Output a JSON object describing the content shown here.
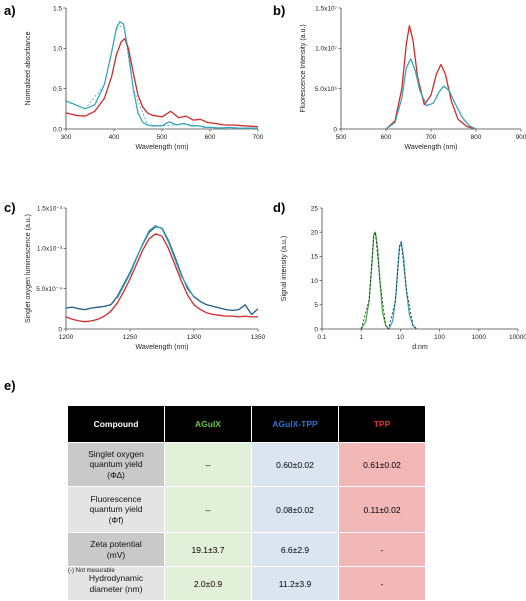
{
  "panels": {
    "a": "a)",
    "b": "b)",
    "c": "c)",
    "d": "d)",
    "e": "e)"
  },
  "chart_data": [
    {
      "id": "a",
      "type": "line",
      "xlabel": "Wavelength (nm)",
      "ylabel": "Normalized absorbance",
      "xlim": [
        300,
        700
      ],
      "ylim": [
        0,
        1.5
      ],
      "xticks": [
        300,
        400,
        500,
        600,
        700
      ],
      "yticks": [
        0,
        0.5,
        1,
        1.5
      ],
      "ytick_labels": [
        "0.0",
        "0.5",
        "1.0",
        "1.5"
      ],
      "series": [
        {
          "color": "#3aa6b9",
          "x": [
            300,
            320,
            340,
            360,
            380,
            395,
            405,
            412,
            420,
            430,
            440,
            450,
            460,
            470,
            480,
            500,
            515,
            530,
            545,
            560,
            575,
            590,
            605,
            620,
            640,
            660,
            680,
            700
          ],
          "y": [
            0.35,
            0.3,
            0.25,
            0.3,
            0.55,
            0.95,
            1.25,
            1.33,
            1.3,
            0.95,
            0.5,
            0.2,
            0.08,
            0.05,
            0.04,
            0.04,
            0.09,
            0.05,
            0.07,
            0.04,
            0.04,
            0.02,
            0.02,
            0.01,
            0.02,
            0.01,
            0.01,
            0.01
          ]
        },
        {
          "color": "#d12a2a",
          "x": [
            300,
            320,
            340,
            360,
            380,
            395,
            405,
            415,
            422,
            430,
            440,
            450,
            460,
            470,
            480,
            500,
            518,
            535,
            550,
            565,
            580,
            595,
            610,
            630,
            650,
            670,
            700
          ],
          "y": [
            0.2,
            0.17,
            0.16,
            0.22,
            0.38,
            0.65,
            0.92,
            1.08,
            1.12,
            1.0,
            0.7,
            0.42,
            0.27,
            0.2,
            0.17,
            0.15,
            0.22,
            0.14,
            0.16,
            0.11,
            0.12,
            0.08,
            0.07,
            0.05,
            0.05,
            0.04,
            0.03
          ]
        },
        {
          "color": "#3aa6b9",
          "dashed": true,
          "x": [
            300,
            340,
            380,
            405,
            420,
            440,
            470,
            500,
            550,
            600,
            700
          ],
          "y": [
            0.34,
            0.25,
            0.55,
            1.24,
            1.29,
            0.5,
            0.05,
            0.04,
            0.06,
            0.02,
            0.01
          ]
        }
      ]
    },
    {
      "id": "b",
      "type": "line",
      "xlabel": "Wavelength (nm)",
      "ylabel": "Fluorescence Intensity (a.u.)",
      "xlim": [
        500,
        900
      ],
      "ylim": [
        0,
        15000000
      ],
      "xticks": [
        500,
        600,
        700,
        800,
        900
      ],
      "yticks": [
        0,
        5000000,
        10000000,
        15000000
      ],
      "ytick_labels": [
        "0",
        "5.0x10⁶",
        "1.0x10⁷",
        "1.5x10⁷"
      ],
      "series": [
        {
          "color": "#d12a2a",
          "x": [
            600,
            620,
            635,
            645,
            652,
            660,
            670,
            685,
            700,
            712,
            722,
            732,
            745,
            760,
            780,
            800
          ],
          "y": [
            0,
            1000000,
            5000000,
            10500000,
            12800000,
            11000000,
            6500000,
            3000000,
            4200000,
            6800000,
            8000000,
            6800000,
            3500000,
            1200000,
            300000,
            0
          ]
        },
        {
          "color": "#3aa6b9",
          "x": [
            600,
            620,
            635,
            645,
            655,
            665,
            675,
            690,
            705,
            718,
            728,
            740,
            755,
            770,
            785,
            800
          ],
          "y": [
            0,
            800000,
            3800000,
            7600000,
            8700000,
            7200000,
            4800000,
            2900000,
            3200000,
            4600000,
            5300000,
            4800000,
            3000000,
            1400000,
            400000,
            0
          ]
        }
      ]
    },
    {
      "id": "c",
      "type": "line",
      "xlabel": "Wavelength (nm)",
      "ylabel": "Singlet oxygen luminescence (a.u.)",
      "xlim": [
        1200,
        1350
      ],
      "ylim": [
        0,
        0.0015
      ],
      "xticks": [
        1200,
        1250,
        1300,
        1350
      ],
      "yticks": [
        0,
        0.0005,
        0.001,
        0.0015
      ],
      "ytick_labels": [
        "0",
        "5.0x10⁻⁴",
        "1.0x10⁻³",
        "1.5x10⁻³"
      ],
      "series": [
        {
          "color": "#1f5b86",
          "x": [
            1200,
            1205,
            1210,
            1215,
            1220,
            1225,
            1230,
            1235,
            1240,
            1245,
            1250,
            1255,
            1260,
            1265,
            1270,
            1275,
            1280,
            1285,
            1290,
            1295,
            1300,
            1305,
            1310,
            1315,
            1320,
            1325,
            1330,
            1335,
            1340,
            1345,
            1350
          ],
          "y": [
            0.00026,
            0.00027,
            0.00025,
            0.00024,
            0.00026,
            0.00027,
            0.00028,
            0.0003,
            0.0004,
            0.00055,
            0.0007,
            0.00088,
            0.00105,
            0.0012,
            0.00127,
            0.00125,
            0.0011,
            0.0009,
            0.00068,
            0.0005,
            0.0004,
            0.00034,
            0.0003,
            0.00028,
            0.00026,
            0.00024,
            0.00023,
            0.00024,
            0.0003,
            0.00018,
            0.00025
          ]
        },
        {
          "color": "#d12a2a",
          "x": [
            1200,
            1205,
            1210,
            1215,
            1220,
            1225,
            1230,
            1235,
            1240,
            1245,
            1250,
            1255,
            1260,
            1265,
            1270,
            1275,
            1280,
            1285,
            1290,
            1295,
            1300,
            1305,
            1310,
            1315,
            1320,
            1325,
            1330,
            1335,
            1340,
            1345,
            1350
          ],
          "y": [
            0.00015,
            0.00012,
            0.0001,
            9e-05,
            0.0001,
            0.00012,
            0.00016,
            0.00022,
            0.00032,
            0.00046,
            0.00062,
            0.0008,
            0.00098,
            0.00112,
            0.00118,
            0.00115,
            0.001,
            0.0008,
            0.0006,
            0.00042,
            0.0003,
            0.00024,
            0.0002,
            0.00018,
            0.00017,
            0.00016,
            0.00016,
            0.00015,
            0.00016,
            0.00015,
            0.00015
          ]
        },
        {
          "color": "#3aa6b9",
          "x": [
            1240,
            1250,
            1260,
            1265,
            1270,
            1275,
            1280,
            1290,
            1300
          ],
          "y": [
            0.00038,
            0.00068,
            0.00106,
            0.00122,
            0.00128,
            0.00124,
            0.00108,
            0.00066,
            0.00039
          ]
        }
      ]
    },
    {
      "id": "d",
      "type": "line",
      "xscale": "log",
      "xlabel": "d.nm",
      "ylabel": "Signal intensity (a.u.)",
      "xlim": [
        0.1,
        10000
      ],
      "ylim": [
        0,
        25
      ],
      "xticks": [
        0.1,
        1,
        10,
        100,
        1000,
        10000
      ],
      "xtick_labels": [
        "0.1",
        "1",
        "10",
        "100",
        "1000",
        "10000"
      ],
      "yticks": [
        0,
        5,
        10,
        15,
        20,
        25
      ],
      "series": [
        {
          "color": "#4caf50",
          "x": [
            1,
            1.3,
            1.6,
            1.9,
            2.1,
            2.3,
            2.6,
            3.0,
            3.5,
            4.2,
            5
          ],
          "y": [
            0,
            1.5,
            6,
            14,
            19.5,
            20,
            17,
            10,
            3.5,
            0.8,
            0
          ]
        },
        {
          "color": "#3aa6b9",
          "x": [
            5,
            6.3,
            7.5,
            8.5,
            9.5,
            10.5,
            12,
            14,
            17,
            21,
            26
          ],
          "y": [
            0,
            1.5,
            6,
            12,
            17,
            18,
            15,
            8.5,
            3,
            0.7,
            0
          ]
        },
        {
          "color": "#1a1a1a",
          "dashed": true,
          "x": [
            1,
            1.6,
            2.1,
            2.3,
            3.0,
            4.2,
            5,
            7.5,
            9.5,
            10.5,
            14,
            21,
            26
          ],
          "y": [
            0,
            6,
            19.5,
            20,
            10,
            0.8,
            0,
            6,
            17,
            18,
            8.5,
            0.7,
            0
          ]
        }
      ]
    }
  ],
  "table": {
    "headers": [
      "Compound",
      "AGuIX",
      "AGuIX-TPP",
      "TPP"
    ],
    "header_colors": [
      "#ffffff",
      "#6cc24a",
      "#2e6fd0",
      "#e03030"
    ],
    "rows": [
      {
        "label": [
          "Singlet oxygen",
          "quantum yield",
          "(Φ∆)"
        ],
        "values": [
          "–",
          "0.60±0.02",
          "0.61±0.02"
        ]
      },
      {
        "label": [
          "Fluorescence",
          "quantum yield",
          "(Φf)"
        ],
        "values": [
          "–",
          "0.08±0.02",
          "0.11±0.02"
        ]
      },
      {
        "label": [
          "Zeta potential",
          "(mV)"
        ],
        "values": [
          "19.1±3.7",
          "6.6±2.9",
          "-"
        ]
      },
      {
        "label": [
          "Hydrodynamic",
          "diameter (nm)"
        ],
        "values": [
          "2.0±0.9",
          "11.2±3.9",
          "-"
        ]
      }
    ],
    "column_colors": [
      "#d9d9d9",
      "#e2efd9",
      "#dbe5f1",
      "#f2b8b8"
    ],
    "label_colors": [
      "#c9c9c9",
      "#e4e4e4",
      "#c9c9c9",
      "#e4e4e4"
    ],
    "note": "(-)  Not mesurable"
  }
}
